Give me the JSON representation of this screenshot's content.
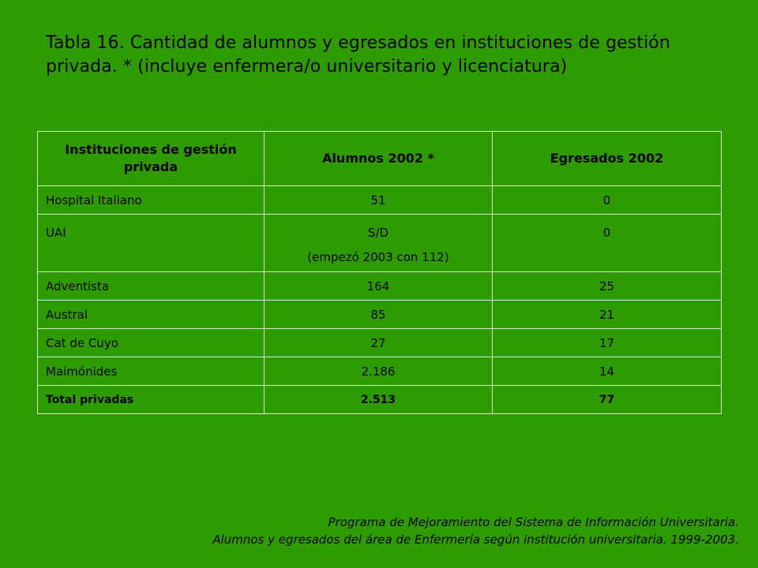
{
  "title": "Tabla 16. Cantidad de alumnos y egresados en instituciones de gestión privada. * (incluye enfermera/o universitario y licenciatura)",
  "table": {
    "headers": [
      "Instituciones de gestión privada",
      "Alumnos 2002 *",
      "Egresados 2002"
    ],
    "rows": [
      {
        "name": "Hospital Italiano",
        "alumnos": "51",
        "egresados": "0"
      },
      {
        "name": "UAI",
        "alumnos": "S/D",
        "alumnos_note": "(empezó 2003 con 112)",
        "egresados": "0"
      },
      {
        "name": "Adventista",
        "alumnos": "164",
        "egresados": "25"
      },
      {
        "name": "Austral",
        "alumnos": "85",
        "egresados": "21"
      },
      {
        "name": "Cat de Cuyo",
        "alumnos": "27",
        "egresados": "17"
      },
      {
        "name": "Maimónides",
        "alumnos": "2.186",
        "egresados": "14"
      }
    ],
    "total": {
      "name": "Total privadas",
      "alumnos": "2.513",
      "egresados": "77"
    }
  },
  "footer": {
    "line1": "Programa de Mejoramiento del Sistema de Información Universitaria.",
    "line2": "Alumnos y egresados del área de Enfermería según institución universitaria. 1999-2003."
  },
  "colors": {
    "background": "#2e9b00",
    "grid": "#d8ead0",
    "text": "#000000"
  }
}
